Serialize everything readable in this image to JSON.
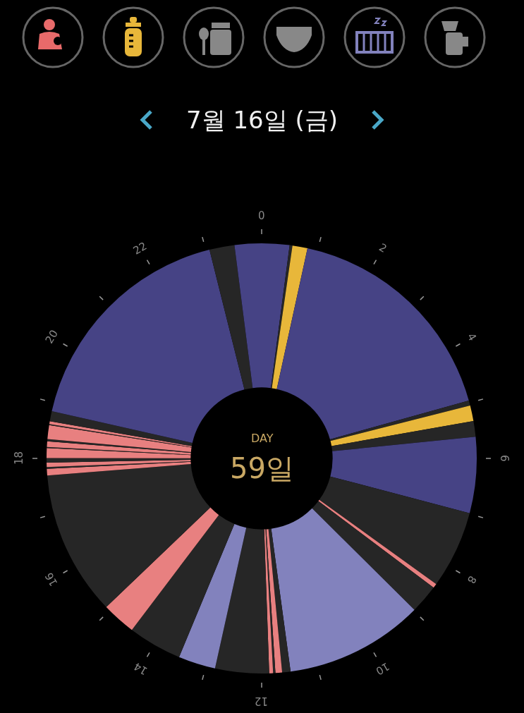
{
  "chart_data": {
    "type": "donut",
    "title": "7월 16일 (금)",
    "annotations": [
      "DAY",
      "59일",
      "0",
      "2",
      "4",
      "6",
      "8",
      "10",
      "12",
      "14",
      "16",
      "18",
      "20",
      "22"
    ],
    "categories": [
      null,
      null,
      null,
      null,
      null,
      null,
      null,
      null,
      null,
      null,
      null,
      null,
      null,
      null,
      null,
      null,
      null,
      null,
      null,
      null,
      null,
      null,
      null,
      null,
      null,
      null,
      null,
      null,
      null,
      null,
      null,
      null,
      null,
      null,
      null,
      null
    ],
    "values": [
      2.08,
      0.21,
      1.13,
      17.25,
      0.38,
      1.17,
      1.17,
      5.71,
      5.83,
      0.33,
      2.17,
      10.42,
      0.63,
      0.5,
      0.17,
      0.29,
      4.04,
      2.79,
      4.04,
      2.54,
      10.88,
      0.5,
      0.13,
      0.33,
      0.33,
      0.75,
      0.08,
      0.42,
      0.17,
      1.04,
      0.08,
      0.21,
      0.75,
      17.58,
      1.88,
      2.02
    ],
    "colors": [
      "#464385",
      "#262626",
      "#e8b73a",
      "#464385",
      "#262626",
      "#e8b73a",
      "#262626",
      "#464385",
      "#262626",
      "#e88080",
      "#262626",
      "#8282bd",
      "#262626",
      "#e88080",
      "#262626",
      "#e88080",
      "#262626",
      "#8282bd",
      "#262626",
      "#e88080",
      "#262626",
      "#e88080",
      "#262626",
      "#e88080",
      "#262626",
      "#e88080",
      "#262626",
      "#e88080",
      "#262626",
      "#e88080",
      "#262626",
      "#e88080",
      "#262626",
      "#464385",
      "#262626",
      "#464385"
    ],
    "legend": false
  }
}
